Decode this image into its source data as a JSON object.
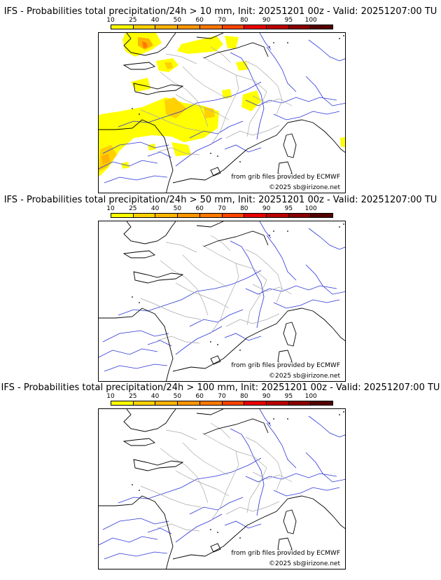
{
  "colorbar": {
    "ticks": [
      "10",
      "25",
      "40",
      "50",
      "60",
      "70",
      "80",
      "90",
      "95",
      "100"
    ],
    "colors": [
      "#ffff00",
      "#ffd100",
      "#ffb400",
      "#ff9600",
      "#ff7800",
      "#ff4400",
      "#e80000",
      "#bb0000",
      "#8a0000",
      "#550000"
    ]
  },
  "panels": [
    {
      "title": "IFS - Probabilities total precipitation/24h > 10 mm, Init: 20251201 00z - Valid: 20251207:00 TU",
      "source_credit": "from grib files provided by ECMWF",
      "copyright": "©2025 sb@irizone.net",
      "has_precip": true
    },
    {
      "title": "IFS - Probabilities total precipitation/24h > 50 mm, Init: 20251201 00z - Valid: 20251207:00 TU",
      "source_credit": "from grib files provided by ECMWF",
      "copyright": "©2025 sb@irizone.net",
      "has_precip": false
    },
    {
      "title": "IFS - Probabilities total precipitation/24h > 100 mm, Init: 20251201 00z - Valid: 20251207:00 TU",
      "source_credit": "from grib files provided by ECMWF",
      "copyright": "©2025 sb@irizone.net",
      "has_precip": false
    }
  ]
}
